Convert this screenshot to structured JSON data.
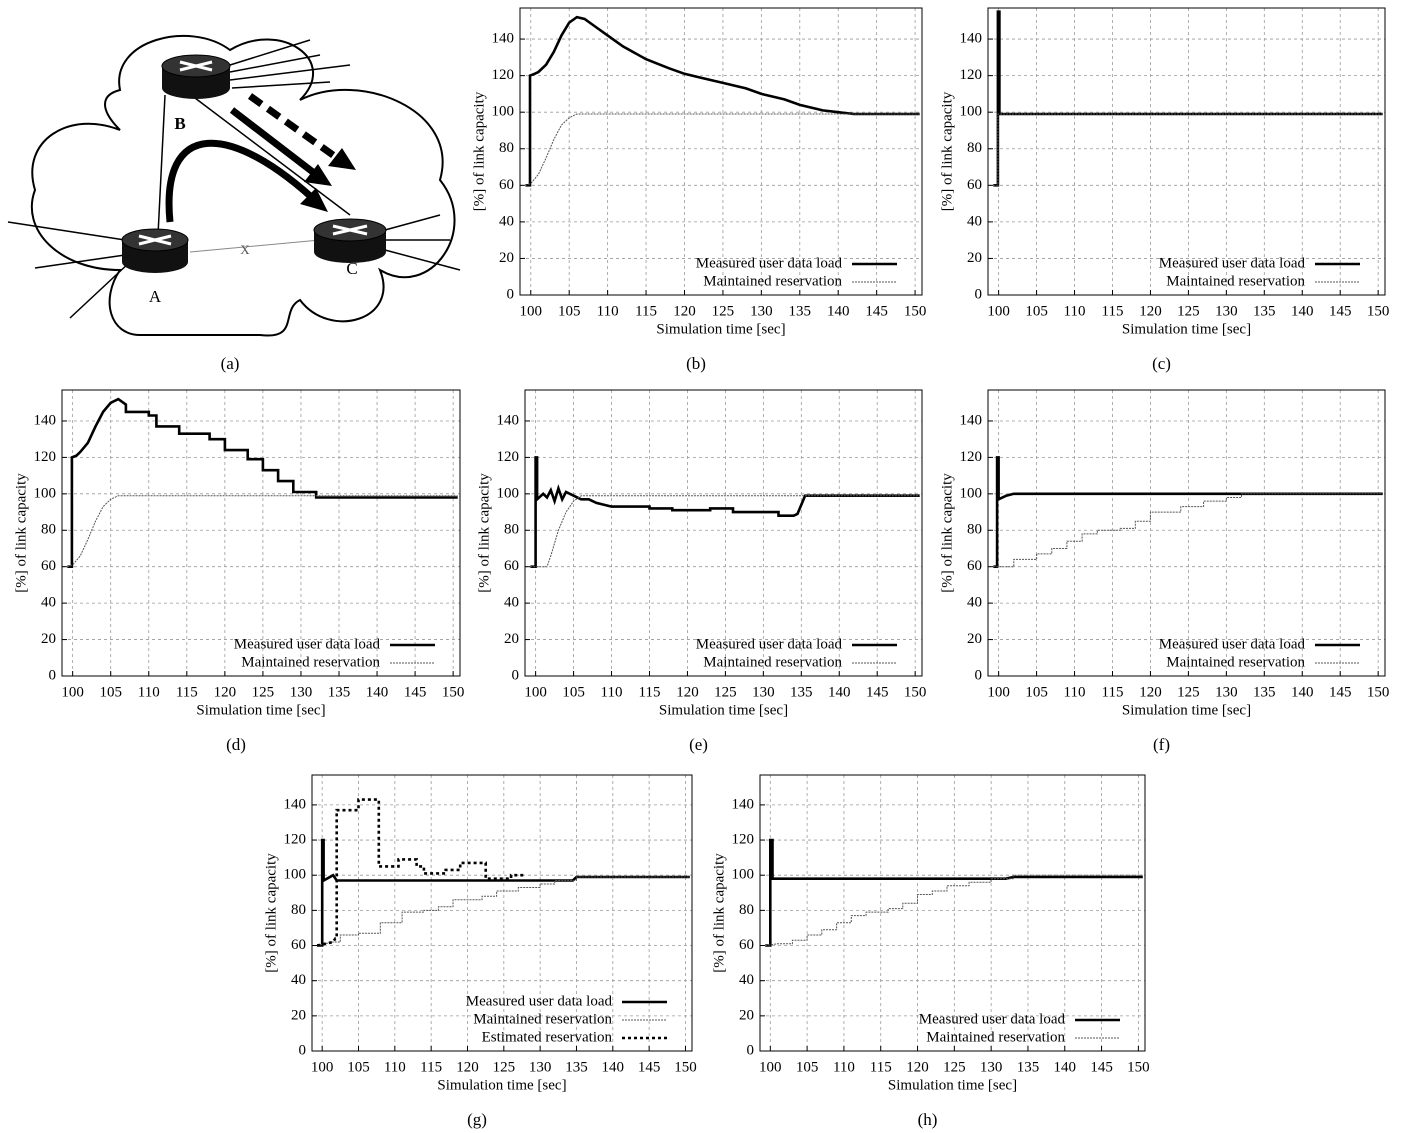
{
  "diagram": {
    "nodes": [
      {
        "label": "A"
      },
      {
        "label": "B"
      },
      {
        "label": "C"
      }
    ],
    "link_label": "X",
    "caption": "(a)"
  },
  "chart_data": [
    {
      "type": "line",
      "caption": "(b)",
      "xlabel": "Simulation time [sec]",
      "ylabel": "[%] of link capacity",
      "xlim": [
        98.6,
        150.9
      ],
      "ylim": [
        0,
        157
      ],
      "xticks": [
        100,
        105,
        110,
        115,
        120,
        125,
        130,
        135,
        140,
        145,
        150
      ],
      "yticks": [
        0,
        20,
        40,
        60,
        80,
        100,
        120,
        140
      ],
      "grid": true,
      "legend": "lower right",
      "series": [
        {
          "name": "Measured user data load",
          "color": "#000000",
          "line_width": 2.6,
          "dash": "none",
          "x": [
            99.3,
            99.9,
            99.9,
            100.5,
            101,
            102,
            103,
            104,
            105,
            106,
            107,
            108,
            110,
            112,
            115,
            118,
            120,
            122,
            125,
            128,
            130,
            133,
            135,
            138,
            140,
            142,
            145,
            150.6
          ],
          "values": [
            60,
            60,
            120,
            121,
            122,
            126,
            133,
            142,
            149,
            152,
            151,
            148,
            142,
            136,
            129,
            124,
            121,
            119,
            116,
            113,
            110,
            107,
            104,
            101,
            100,
            99,
            99,
            99
          ]
        },
        {
          "name": "Maintained reservation",
          "color": "#555555",
          "line_width": 1,
          "dash": "2 1",
          "x": [
            99.3,
            100,
            101,
            102,
            103,
            104,
            105,
            106,
            110,
            150.6
          ],
          "values": [
            60,
            61,
            66,
            75,
            85,
            93,
            97,
            99,
            99,
            99
          ]
        }
      ]
    },
    {
      "type": "line",
      "caption": "(c)",
      "xlabel": "Simulation time [sec]",
      "ylabel": "[%] of link capacity",
      "xlim": [
        98.6,
        150.9
      ],
      "ylim": [
        0,
        157
      ],
      "xticks": [
        100,
        105,
        110,
        115,
        120,
        125,
        130,
        135,
        140,
        145,
        150
      ],
      "yticks": [
        0,
        20,
        40,
        60,
        80,
        100,
        120,
        140
      ],
      "grid": true,
      "legend": "lower right",
      "series": [
        {
          "name": "Measured user data load",
          "color": "#000000",
          "line_width": 2.6,
          "dash": "none",
          "x": [
            99.3,
            99.9,
            99.9,
            100.1,
            100.1,
            150.6
          ],
          "values": [
            60,
            60,
            155,
            155,
            99,
            99
          ]
        },
        {
          "name": "Maintained reservation",
          "color": "#555555",
          "line_width": 1,
          "dash": "2 1",
          "x": [
            99.3,
            99.9,
            99.9,
            150.6
          ],
          "values": [
            60,
            60,
            99,
            99
          ]
        }
      ]
    },
    {
      "type": "line",
      "caption": "(d)",
      "xlabel": "Simulation time [sec]",
      "ylabel": "[%] of link capacity",
      "xlim": [
        98.6,
        150.9
      ],
      "ylim": [
        0,
        157
      ],
      "xticks": [
        100,
        105,
        110,
        115,
        120,
        125,
        130,
        135,
        140,
        145,
        150
      ],
      "yticks": [
        0,
        20,
        40,
        60,
        80,
        100,
        120,
        140
      ],
      "grid": true,
      "legend": "lower right",
      "series": [
        {
          "name": "Measured user data load",
          "color": "#000000",
          "line_width": 2.6,
          "dash": "none",
          "x": [
            99.3,
            99.9,
            99.9,
            100.5,
            101,
            102,
            103,
            104,
            105,
            106,
            107,
            107,
            110,
            110,
            111,
            111,
            114,
            114,
            118,
            118,
            120,
            120,
            123,
            123,
            125,
            125,
            127,
            127,
            129,
            129,
            132,
            132,
            150.6
          ],
          "values": [
            60,
            60,
            120,
            121,
            123,
            128,
            137,
            145,
            150,
            152,
            149,
            145,
            145,
            143,
            143,
            137,
            137,
            133,
            133,
            130,
            130,
            124,
            124,
            119,
            119,
            113,
            113,
            107,
            107,
            101,
            101,
            98,
            98
          ]
        },
        {
          "name": "Maintained reservation",
          "color": "#555555",
          "line_width": 1,
          "dash": "2 1",
          "x": [
            99.3,
            100,
            101,
            102,
            103,
            104,
            105,
            106,
            110,
            150.6
          ],
          "values": [
            60,
            61,
            66,
            75,
            85,
            93,
            97,
            99,
            99,
            99
          ]
        }
      ]
    },
    {
      "type": "line",
      "caption": "(e)",
      "xlabel": "Simulation time [sec]",
      "ylabel": "[%] of link capacity",
      "xlim": [
        98.6,
        150.9
      ],
      "ylim": [
        0,
        157
      ],
      "xticks": [
        100,
        105,
        110,
        115,
        120,
        125,
        130,
        135,
        140,
        145,
        150
      ],
      "yticks": [
        0,
        20,
        40,
        60,
        80,
        100,
        120,
        140
      ],
      "grid": true,
      "legend": "lower right",
      "series": [
        {
          "name": "Measured user data load",
          "color": "#000000",
          "line_width": 2.6,
          "dash": "none",
          "x": [
            99.3,
            100,
            100,
            100.2,
            100.2,
            101,
            101.5,
            102,
            102.5,
            103,
            103.5,
            104,
            105,
            106,
            107,
            108,
            110,
            115,
            115,
            118,
            118,
            123,
            123,
            126,
            126,
            132,
            132,
            134,
            134.5,
            135.5,
            150.6
          ],
          "values": [
            60,
            60,
            120,
            120,
            97,
            100,
            98,
            102,
            96,
            103,
            97,
            101,
            99,
            97,
            97,
            95,
            93,
            93,
            92,
            92,
            91,
            91,
            92,
            92,
            90,
            90,
            88,
            88,
            89,
            99,
            99
          ]
        },
        {
          "name": "Maintained reservation",
          "color": "#555555",
          "line_width": 1,
          "dash": "2 1",
          "x": [
            99.3,
            101.5,
            102,
            103,
            104,
            105,
            106,
            150.6
          ],
          "values": [
            60,
            60,
            66,
            80,
            90,
            96,
            99,
            99
          ]
        }
      ]
    },
    {
      "type": "line",
      "caption": "(f)",
      "xlabel": "Simulation time [sec]",
      "ylabel": "[%] of link capacity",
      "xlim": [
        98.6,
        150.9
      ],
      "ylim": [
        0,
        157
      ],
      "xticks": [
        100,
        105,
        110,
        115,
        120,
        125,
        130,
        135,
        140,
        145,
        150
      ],
      "yticks": [
        0,
        20,
        40,
        60,
        80,
        100,
        120,
        140
      ],
      "grid": true,
      "legend": "lower right",
      "series": [
        {
          "name": "Measured user data load",
          "color": "#000000",
          "line_width": 2.6,
          "dash": "none",
          "x": [
            99.3,
            99.8,
            99.8,
            100,
            100,
            101,
            102,
            150.6
          ],
          "values": [
            60,
            60,
            120,
            120,
            97,
            99,
            100,
            100
          ]
        },
        {
          "name": "Maintained reservation",
          "color": "#555555",
          "line_width": 1,
          "dash": "2 1",
          "x": [
            99.3,
            102,
            102,
            105,
            105,
            107,
            107,
            109,
            109,
            111,
            111,
            113,
            113,
            116,
            116,
            118,
            118,
            120,
            120,
            124,
            124,
            127,
            127,
            130,
            130,
            132,
            132,
            150.6
          ],
          "values": [
            60,
            60,
            64,
            64,
            67,
            67,
            70,
            70,
            74,
            74,
            78,
            78,
            80,
            80,
            81,
            81,
            85,
            85,
            90,
            90,
            93,
            93,
            96,
            96,
            98,
            98,
            100,
            100
          ]
        }
      ]
    },
    {
      "type": "line",
      "caption": "(g)",
      "xlabel": "Simulation time [sec]",
      "ylabel": "[%] of link capacity",
      "xlim": [
        98.6,
        150.9
      ],
      "ylim": [
        0,
        157
      ],
      "xticks": [
        100,
        105,
        110,
        115,
        120,
        125,
        130,
        135,
        140,
        145,
        150
      ],
      "yticks": [
        0,
        20,
        40,
        60,
        80,
        100,
        120,
        140
      ],
      "grid": true,
      "legend": "lower right",
      "series": [
        {
          "name": "Measured user data load",
          "color": "#000000",
          "line_width": 2.6,
          "dash": "none",
          "x": [
            99.3,
            100,
            100,
            100.2,
            100.2,
            101.5,
            102,
            134.5,
            135,
            150.6
          ],
          "values": [
            60,
            60,
            120,
            120,
            97,
            100,
            97,
            97,
            99,
            99
          ]
        },
        {
          "name": "Maintained reservation",
          "color": "#555555",
          "line_width": 1,
          "dash": "2 1",
          "x": [
            99.3,
            101.5,
            102.5,
            102.5,
            105,
            105,
            108,
            108,
            111,
            111,
            114,
            114,
            116,
            116,
            118,
            118,
            122,
            122,
            124,
            124,
            127,
            127,
            130,
            130,
            132,
            132,
            135,
            135,
            150.6
          ],
          "values": [
            60,
            62,
            62,
            66,
            66,
            67,
            67,
            73,
            73,
            79,
            79,
            80,
            80,
            82,
            82,
            86,
            86,
            88,
            88,
            91,
            91,
            93,
            93,
            95,
            95,
            97,
            97,
            99,
            99
          ]
        },
        {
          "name": "Estimated reservation",
          "color": "#000000",
          "line_width": 2.6,
          "dash": "3 3",
          "x": [
            99.3,
            101.5,
            101.8,
            102,
            102,
            105,
            105,
            107.8,
            107.8,
            110.5,
            110.5,
            113,
            113,
            114,
            114,
            117,
            117,
            119,
            119,
            122.5,
            122.5,
            126,
            126,
            128
          ],
          "values": [
            60,
            62,
            64,
            64,
            137,
            137,
            143,
            143,
            105,
            105,
            109,
            109,
            105,
            105,
            101,
            101,
            103,
            103,
            107,
            107,
            98,
            98,
            100,
            100
          ]
        }
      ]
    },
    {
      "type": "line",
      "caption": "(h)",
      "xlabel": "Simulation time [sec]",
      "ylabel": "[%] of link capacity",
      "xlim": [
        98.6,
        150.9
      ],
      "ylim": [
        0,
        157
      ],
      "xticks": [
        100,
        105,
        110,
        115,
        120,
        125,
        130,
        135,
        140,
        145,
        150
      ],
      "yticks": [
        0,
        20,
        40,
        60,
        80,
        100,
        120,
        140
      ],
      "grid": true,
      "legend": "lower right",
      "series": [
        {
          "name": "Measured user data load",
          "color": "#000000",
          "line_width": 2.6,
          "dash": "none",
          "x": [
            99.3,
            100,
            100,
            100.3,
            100.3,
            132,
            133,
            150.6
          ],
          "values": [
            60,
            60,
            120,
            120,
            98,
            98,
            99,
            99
          ]
        },
        {
          "name": "Maintained reservation",
          "color": "#555555",
          "line_width": 1,
          "dash": "2 1",
          "x": [
            99.3,
            101,
            103,
            103,
            105,
            105,
            107,
            107,
            109,
            109,
            111,
            111,
            113,
            113,
            116,
            116,
            118,
            118,
            120,
            120,
            122,
            122,
            124,
            124,
            127,
            127,
            130,
            130,
            133,
            133,
            150.6
          ],
          "values": [
            60,
            61,
            61,
            63,
            63,
            66,
            66,
            69,
            69,
            73,
            73,
            77,
            77,
            79,
            79,
            81,
            81,
            84,
            84,
            89,
            89,
            91,
            91,
            94,
            94,
            96,
            96,
            98,
            98,
            100,
            100
          ]
        }
      ]
    }
  ]
}
